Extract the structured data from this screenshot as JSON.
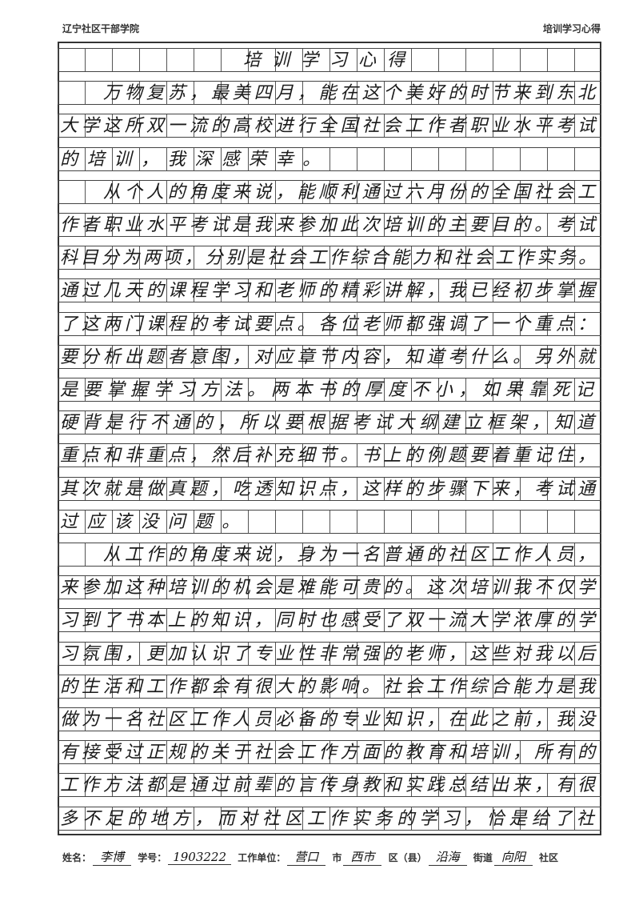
{
  "header": {
    "institution": "辽宁社区干部学院",
    "doc_type": "培训学习心得"
  },
  "essay": {
    "title": "培训学习心得",
    "rows": [
      "　　万物复苏，最美四月，能在这个美好的时节来到东北",
      "大学这所双一流的高校进行全国社会工作者职业水平考试",
      "的培训，我深感荣幸。",
      "　　从个人的角度来说，能顺利通过六月份的全国社会工",
      "作者职业水平考试是我来参加此次培训的主要目的。考试",
      "科目分为两项，分别是社会工作综合能力和社会工作实务。",
      "通过几天的课程学习和老师的精彩讲解，我已经初步掌握",
      "了这两门课程的考试要点。各位老师都强调了一个重点：",
      "要分析出题者意图，对应章节内容，知道考什么。另外就",
      "是要掌握学习方法。两本书的厚度不小，如果靠死记",
      "硬背是行不通的，所以要根据考试大纲建立框架，知道",
      "重点和非重点，然后补充细节。书上的例题要着重记住，",
      "其次就是做真题，吃透知识点，这样的步骤下来，考试通",
      "过应该没问题。",
      "　　从工作的角度来说，身为一名普通的社区工作人员，",
      "来参加这种培训的机会是难能可贵的。这次培训我不仅学",
      "习到了书本上的知识，同时也感受了双一流大学浓厚的学",
      "习氛围，更加认识了专业性非常强的老师，这些对我以后",
      "的生活和工作都会有很大的影响。社会工作综合能力是我",
      "做为一名社区工作人员必备的专业知识，在此之前，我没",
      "有接受过正规的关于社会工作方面的教育和培训，所有的",
      "工作方法都是通过前辈的言传身教和实践总结出来，有很",
      "多不足的地方，而对社区工作实务的学习，恰是给了社"
    ]
  },
  "footer": {
    "name_label": "姓名：",
    "name": "李博",
    "id_label": "学号：",
    "id": "1903222",
    "unit_label": "工作单位：",
    "city": "营口",
    "city_label": "市",
    "district": "西市",
    "district_label": "区（县）",
    "street": "沿海",
    "street_label": "街道",
    "community": "向阳",
    "community_label": "社区"
  }
}
